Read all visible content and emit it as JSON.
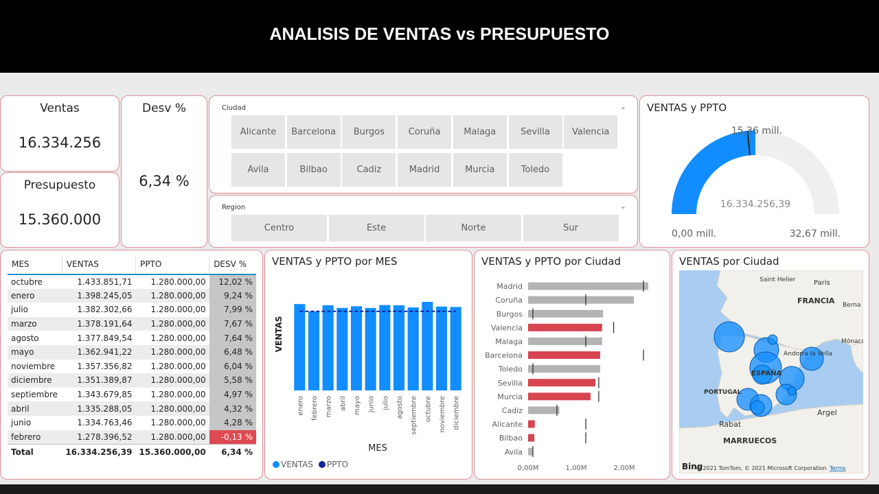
{
  "header": {
    "title": "ANALISIS DE VENTAS vs PRESUPUESTO"
  },
  "kpis": {
    "ventas_label": "Ventas",
    "ventas_value": "16.334.256",
    "presupuesto_label": "Presupuesto",
    "presupuesto_value": "15.360.000",
    "desv_label": "Desv %",
    "desv_value": "6,34 %"
  },
  "slicer_ciudad": {
    "title": "Ciudad",
    "items": [
      "Alicante",
      "Barcelona",
      "Burgos",
      "Coruña",
      "Malaga",
      "Sevilla",
      "Valencia",
      "Avila",
      "Bilbao",
      "Cadiz",
      "Madrid",
      "Murcia",
      "Toledo"
    ]
  },
  "slicer_region": {
    "title": "Region",
    "items": [
      "Centro",
      "Este",
      "Norte",
      "Sur"
    ]
  },
  "gauge": {
    "title": "VENTAS y PPTO",
    "value_label": "16.334.256,39",
    "target_label": "15,36 mill.",
    "min_label": "0,00 mill.",
    "max_label": "32,67 mill.",
    "value": 16334256.39,
    "target": 15360000,
    "min": 0,
    "max": 32670000,
    "fill_color": "#118dff",
    "track_color": "#efefef"
  },
  "matrix": {
    "headers": [
      "MES",
      "VENTAS",
      "PPTO",
      "DESV %"
    ],
    "rows": [
      [
        "octubre",
        "1.433.851,71",
        "1.280.000,00",
        "12,02 %"
      ],
      [
        "enero",
        "1.398.245,05",
        "1.280.000,00",
        "9,24 %"
      ],
      [
        "julio",
        "1.382.302,66",
        "1.280.000,00",
        "7,99 %"
      ],
      [
        "marzo",
        "1.378.191,64",
        "1.280.000,00",
        "7,67 %"
      ],
      [
        "agosto",
        "1.377.849,54",
        "1.280.000,00",
        "7,64 %"
      ],
      [
        "mayo",
        "1.362.941,22",
        "1.280.000,00",
        "6,48 %"
      ],
      [
        "noviembre",
        "1.357.356,82",
        "1.280.000,00",
        "6,04 %"
      ],
      [
        "diciembre",
        "1.351.389,87",
        "1.280.000,00",
        "5,58 %"
      ],
      [
        "septiembre",
        "1.343.679,85",
        "1.280.000,00",
        "4,97 %"
      ],
      [
        "abril",
        "1.335.288,05",
        "1.280.000,00",
        "4,32 %"
      ],
      [
        "junio",
        "1.334.763,46",
        "1.280.000,00",
        "4,28 %"
      ],
      [
        "febrero",
        "1.278.396,52",
        "1.280.000,00",
        "-0,13 %"
      ]
    ],
    "total": [
      "Total",
      "16.334.256,39",
      "15.360.000,00",
      "6,34 %"
    ]
  },
  "chart_data": [
    {
      "type": "bar",
      "title": "VENTAS y PPTO por MES",
      "xlabel": "MES",
      "ylabel": "VENTAS",
      "categories": [
        "enero",
        "febrero",
        "marzo",
        "abril",
        "mayo",
        "junio",
        "julio",
        "agosto",
        "septiembre",
        "octubre",
        "noviembre",
        "diciembre"
      ],
      "series": [
        {
          "name": "VENTAS",
          "values": [
            1398245.05,
            1278396.52,
            1378191.64,
            1335288.05,
            1362941.22,
            1334763.46,
            1382302.66,
            1377849.54,
            1343679.85,
            1433851.71,
            1357356.82,
            1351389.87
          ],
          "color": "#118dff"
        },
        {
          "name": "PPTO",
          "values": [
            1280000,
            1280000,
            1280000,
            1280000,
            1280000,
            1280000,
            1280000,
            1280000,
            1280000,
            1280000,
            1280000,
            1280000
          ],
          "color": "#12239e"
        }
      ],
      "legend": "bottom-left"
    },
    {
      "type": "bar",
      "title": "VENTAS y PPTO por Ciudad",
      "orientation": "horizontal",
      "categories": [
        "Madrid",
        "Coruña",
        "Burgos",
        "Valencia",
        "Malaga",
        "Barcelona",
        "Toledo",
        "Sevilla",
        "Murcia",
        "Cadiz",
        "Alicante",
        "Bilbao",
        "Avila"
      ],
      "series": [
        {
          "name": "VENTAS",
          "values": [
            2500000,
            2200000,
            1560000,
            1540000,
            1540000,
            1500000,
            1500000,
            1400000,
            1300000,
            650000,
            140000,
            130000,
            100000
          ]
        },
        {
          "name": "PPTO",
          "values": [
            2400000,
            1200000,
            100000,
            1780000,
            1200000,
            2400000,
            100000,
            1470000,
            1470000,
            600000,
            1200000,
            1200000,
            100000
          ]
        }
      ],
      "highlight": [
        "Valencia",
        "Barcelona",
        "Sevilla",
        "Murcia",
        "Alicante",
        "Bilbao"
      ],
      "highlight_color": "#d64550",
      "normal_color": "#b3b3b3",
      "xticks": [
        "0,00M",
        "1,00M",
        "2,00M"
      ],
      "xlim": [
        0,
        2500000
      ]
    }
  ],
  "map": {
    "title": "VENTAS por Ciudad",
    "labels": [
      "Saint Helier",
      "Paris",
      "FRANCIA",
      "Berna",
      "Mónaco",
      "Andorra la Vella",
      "ESPAÑA",
      "PORTUGAL",
      "Argel",
      "Rabat",
      "MARRUECOS"
    ],
    "attribution": "© 2021 TomTom, © 2021 Microsoft Corporation",
    "terms": "Terms",
    "brand": "Bing",
    "bubble_color": "#118dff"
  }
}
